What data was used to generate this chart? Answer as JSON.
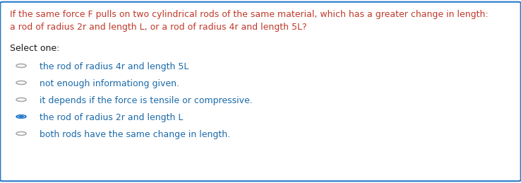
{
  "question_line1": "If the same force F pulls on two cylindrical rods of the same material, which has a greater change in length:",
  "question_line2": "a rod of radius 2r and length L, or a rod of radius 4r and length 5L?",
  "question_color": "#c0392b",
  "select_label": "Select one:",
  "select_color": "#1a1a1a",
  "options": [
    "the rod of radius 4r and length 5L",
    "not enough informationg given.",
    "it depends if the force is tensile or compressive.",
    "the rod of radius 2r and length L",
    "both rods have the same change in length."
  ],
  "option_color": "#1a6aaa",
  "selected_index": 3,
  "radio_empty_fill": "#ffffff",
  "radio_empty_border": "#aaaaaa",
  "radio_selected_fill": "#2478c8",
  "radio_selected_border": "#2478c8",
  "background_color": "#ffffff",
  "border_color": "#2478c8",
  "font_size": 9.0,
  "select_font_size": 9.0
}
